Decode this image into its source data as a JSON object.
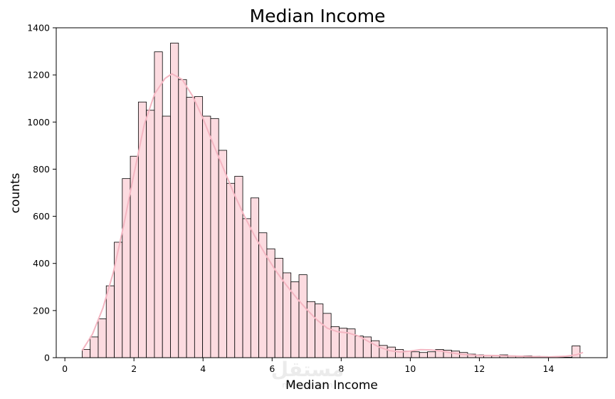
{
  "chart_data": {
    "type": "bar",
    "title": "Median Income",
    "xlabel": "Median Income",
    "ylabel": "counts",
    "xlim": [
      -0.25,
      15.7
    ],
    "ylim": [
      0,
      1400
    ],
    "xticks": [
      0,
      2,
      4,
      6,
      8,
      10,
      12,
      14
    ],
    "yticks": [
      0,
      200,
      400,
      600,
      800,
      1000,
      1200,
      1400
    ],
    "bin_start": 0.5,
    "bin_width": 0.2325,
    "values": [
      35,
      88,
      165,
      305,
      490,
      760,
      855,
      1085,
      1050,
      1298,
      1025,
      1335,
      1180,
      1105,
      1108,
      1025,
      1015,
      880,
      740,
      770,
      590,
      678,
      530,
      462,
      422,
      360,
      322,
      352,
      238,
      228,
      188,
      132,
      125,
      122,
      92,
      88,
      72,
      52,
      45,
      35,
      28,
      25,
      22,
      25,
      35,
      32,
      28,
      22,
      15,
      12,
      10,
      8,
      12,
      8,
      7,
      8,
      6,
      5,
      4,
      3,
      2,
      50
    ],
    "kde": {
      "x": [
        0.5,
        0.8,
        1.1,
        1.4,
        1.7,
        2.0,
        2.3,
        2.6,
        2.9,
        3.1,
        3.4,
        3.7,
        4.0,
        4.3,
        4.6,
        4.9,
        5.2,
        5.5,
        5.8,
        6.1,
        6.4,
        6.7,
        7.0,
        7.3,
        7.6,
        7.9,
        8.2,
        8.5,
        8.8,
        9.1,
        9.4,
        9.7,
        10.0,
        10.3,
        10.6,
        10.9,
        11.2,
        11.5,
        12.0,
        12.5,
        13.0,
        13.5,
        14.0,
        14.5,
        14.8,
        15.0
      ],
      "y": [
        30,
        100,
        210,
        360,
        560,
        780,
        990,
        1120,
        1185,
        1205,
        1180,
        1110,
        1015,
        905,
        800,
        695,
        600,
        515,
        440,
        370,
        310,
        255,
        205,
        160,
        125,
        110,
        105,
        92,
        68,
        45,
        30,
        24,
        28,
        34,
        33,
        28,
        20,
        14,
        10,
        9,
        7,
        5,
        3,
        6,
        12,
        22
      ],
      "color": "#f4b6c2"
    },
    "bar_fill": "#fcdbe0",
    "bar_edge": "#000000"
  },
  "watermark": {
    "text": "مستقل",
    "sub": "mostaql.com"
  }
}
